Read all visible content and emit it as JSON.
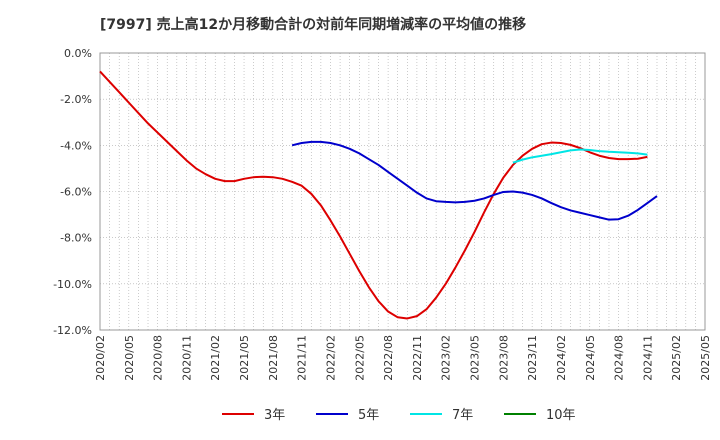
{
  "chart_data": {
    "type": "line",
    "title": "[7997]  売上高12か月移動合計の対前年同期増減率の平均値の推移",
    "xlabel": "",
    "ylabel": "",
    "ylim": [
      -12,
      0
    ],
    "y_ticks": [
      "0.0%",
      "-2.0%",
      "-4.0%",
      "-6.0%",
      "-8.0%",
      "-10.0%",
      "-12.0%"
    ],
    "x_ticks": [
      "2020/02",
      "2020/05",
      "2020/08",
      "2020/11",
      "2021/02",
      "2021/05",
      "2021/08",
      "2021/11",
      "2022/02",
      "2022/05",
      "2022/08",
      "2022/11",
      "2023/02",
      "2023/05",
      "2023/08",
      "2023/11",
      "2024/02",
      "2024/05",
      "2024/08",
      "2024/11",
      "2025/02",
      "2025/05"
    ],
    "grid": true,
    "legend_position": "bottom",
    "series": [
      {
        "name": "3年",
        "color": "#dd0000",
        "points": [
          [
            "2020/02",
            -0.8
          ],
          [
            "2020/03",
            -1.25
          ],
          [
            "2020/04",
            -1.7
          ],
          [
            "2020/05",
            -2.15
          ],
          [
            "2020/06",
            -2.6
          ],
          [
            "2020/07",
            -3.05
          ],
          [
            "2020/08",
            -3.45
          ],
          [
            "2020/09",
            -3.85
          ],
          [
            "2020/10",
            -4.25
          ],
          [
            "2020/11",
            -4.65
          ],
          [
            "2020/12",
            -5.0
          ],
          [
            "2021/01",
            -5.25
          ],
          [
            "2021/02",
            -5.45
          ],
          [
            "2021/03",
            -5.55
          ],
          [
            "2021/04",
            -5.55
          ],
          [
            "2021/05",
            -5.45
          ],
          [
            "2021/06",
            -5.38
          ],
          [
            "2021/07",
            -5.36
          ],
          [
            "2021/08",
            -5.38
          ],
          [
            "2021/09",
            -5.45
          ],
          [
            "2021/10",
            -5.58
          ],
          [
            "2021/11",
            -5.75
          ],
          [
            "2021/12",
            -6.1
          ],
          [
            "2022/01",
            -6.6
          ],
          [
            "2022/02",
            -7.25
          ],
          [
            "2022/03",
            -7.95
          ],
          [
            "2022/04",
            -8.7
          ],
          [
            "2022/05",
            -9.45
          ],
          [
            "2022/06",
            -10.15
          ],
          [
            "2022/07",
            -10.75
          ],
          [
            "2022/08",
            -11.2
          ],
          [
            "2022/09",
            -11.45
          ],
          [
            "2022/10",
            -11.5
          ],
          [
            "2022/11",
            -11.4
          ],
          [
            "2022/12",
            -11.1
          ],
          [
            "2023/01",
            -10.6
          ],
          [
            "2023/02",
            -10.0
          ],
          [
            "2023/03",
            -9.3
          ],
          [
            "2023/04",
            -8.55
          ],
          [
            "2023/05",
            -7.75
          ],
          [
            "2023/06",
            -6.9
          ],
          [
            "2023/07",
            -6.1
          ],
          [
            "2023/08",
            -5.4
          ],
          [
            "2023/09",
            -4.85
          ],
          [
            "2023/10",
            -4.45
          ],
          [
            "2023/11",
            -4.15
          ],
          [
            "2023/12",
            -3.95
          ],
          [
            "2024/01",
            -3.88
          ],
          [
            "2024/02",
            -3.9
          ],
          [
            "2024/03",
            -3.98
          ],
          [
            "2024/04",
            -4.12
          ],
          [
            "2024/05",
            -4.3
          ],
          [
            "2024/06",
            -4.45
          ],
          [
            "2024/07",
            -4.55
          ],
          [
            "2024/08",
            -4.6
          ],
          [
            "2024/09",
            -4.6
          ],
          [
            "2024/10",
            -4.58
          ],
          [
            "2024/11",
            -4.5
          ]
        ]
      },
      {
        "name": "5年",
        "color": "#0000cc",
        "points": [
          [
            "2021/10",
            -4.0
          ],
          [
            "2021/11",
            -3.9
          ],
          [
            "2021/12",
            -3.85
          ],
          [
            "2022/01",
            -3.85
          ],
          [
            "2022/02",
            -3.9
          ],
          [
            "2022/03",
            -4.0
          ],
          [
            "2022/04",
            -4.15
          ],
          [
            "2022/05",
            -4.35
          ],
          [
            "2022/06",
            -4.6
          ],
          [
            "2022/07",
            -4.85
          ],
          [
            "2022/08",
            -5.15
          ],
          [
            "2022/09",
            -5.45
          ],
          [
            "2022/10",
            -5.75
          ],
          [
            "2022/11",
            -6.05
          ],
          [
            "2022/12",
            -6.3
          ],
          [
            "2023/01",
            -6.42
          ],
          [
            "2023/02",
            -6.45
          ],
          [
            "2023/03",
            -6.47
          ],
          [
            "2023/04",
            -6.45
          ],
          [
            "2023/05",
            -6.4
          ],
          [
            "2023/06",
            -6.3
          ],
          [
            "2023/07",
            -6.15
          ],
          [
            "2023/08",
            -6.02
          ],
          [
            "2023/09",
            -6.0
          ],
          [
            "2023/10",
            -6.05
          ],
          [
            "2023/11",
            -6.15
          ],
          [
            "2023/12",
            -6.3
          ],
          [
            "2024/01",
            -6.5
          ],
          [
            "2024/02",
            -6.68
          ],
          [
            "2024/03",
            -6.82
          ],
          [
            "2024/04",
            -6.92
          ],
          [
            "2024/05",
            -7.02
          ],
          [
            "2024/06",
            -7.12
          ],
          [
            "2024/07",
            -7.22
          ],
          [
            "2024/08",
            -7.2
          ],
          [
            "2024/09",
            -7.05
          ],
          [
            "2024/10",
            -6.8
          ],
          [
            "2024/11",
            -6.5
          ],
          [
            "2024/12",
            -6.2
          ]
        ]
      },
      {
        "name": "7年",
        "color": "#00e5e5",
        "points": [
          [
            "2023/09",
            -4.75
          ],
          [
            "2023/10",
            -4.62
          ],
          [
            "2023/11",
            -4.52
          ],
          [
            "2023/12",
            -4.45
          ],
          [
            "2024/01",
            -4.38
          ],
          [
            "2024/02",
            -4.3
          ],
          [
            "2024/03",
            -4.22
          ],
          [
            "2024/04",
            -4.18
          ],
          [
            "2024/05",
            -4.2
          ],
          [
            "2024/06",
            -4.25
          ],
          [
            "2024/07",
            -4.28
          ],
          [
            "2024/08",
            -4.3
          ],
          [
            "2024/09",
            -4.32
          ],
          [
            "2024/10",
            -4.35
          ],
          [
            "2024/11",
            -4.4
          ]
        ]
      },
      {
        "name": "10年",
        "color": "#008000",
        "points": []
      }
    ]
  }
}
